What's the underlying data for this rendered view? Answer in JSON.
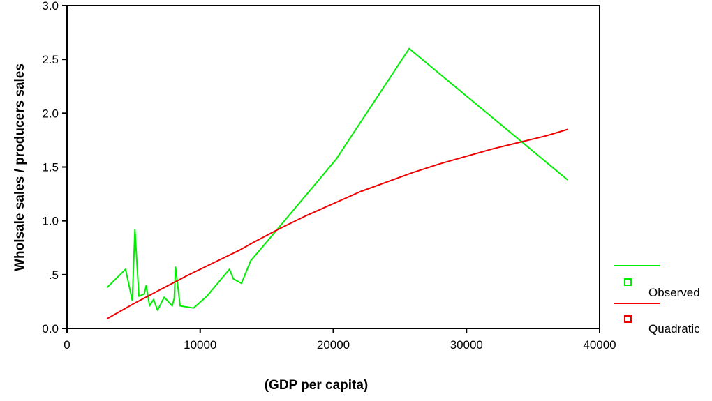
{
  "chart_data": {
    "type": "line",
    "xlabel": "(GDP per capita)",
    "ylabel": "Wholsale sales / producers sales",
    "xlim": [
      0,
      40000
    ],
    "ylim": [
      0,
      3.0
    ],
    "x_ticks": [
      0,
      10000,
      20000,
      30000,
      40000
    ],
    "x_tick_labels": [
      "0",
      "10000",
      "20000",
      "30000",
      "40000"
    ],
    "y_ticks": [
      0,
      0.5,
      1.0,
      1.5,
      2.0,
      2.5,
      3.0
    ],
    "y_tick_labels": [
      "0.0",
      ".5",
      "1.0",
      "1.5",
      "2.0",
      "2.5",
      "3.0"
    ],
    "grid": false,
    "legend_position": "right-bottom, outside plot",
    "series": [
      {
        "name": "Observed",
        "color": "#00ee00",
        "x": [
          3000,
          4400,
          4900,
          5100,
          5400,
          5800,
          5950,
          6200,
          6500,
          6800,
          7300,
          7900,
          8050,
          8150,
          8500,
          9500,
          10500,
          12200,
          12500,
          13100,
          13800,
          14700,
          20200,
          25700,
          37600
        ],
        "y": [
          0.38,
          0.55,
          0.26,
          0.92,
          0.3,
          0.32,
          0.4,
          0.21,
          0.27,
          0.17,
          0.29,
          0.21,
          0.28,
          0.57,
          0.21,
          0.19,
          0.3,
          0.55,
          0.46,
          0.42,
          0.63,
          0.76,
          1.57,
          2.6,
          1.38
        ]
      },
      {
        "name": "Quadratic",
        "color": "#ee0000",
        "x": [
          3000,
          5000,
          7000,
          9000,
          11000,
          13000,
          14000,
          16000,
          18000,
          20000,
          22000,
          24000,
          26000,
          28000,
          30000,
          32000,
          34000,
          36000,
          37600
        ],
        "y": [
          0.09,
          0.23,
          0.36,
          0.49,
          0.61,
          0.73,
          0.8,
          0.93,
          1.05,
          1.16,
          1.27,
          1.36,
          1.45,
          1.53,
          1.6,
          1.67,
          1.73,
          1.79,
          1.85
        ]
      }
    ]
  }
}
